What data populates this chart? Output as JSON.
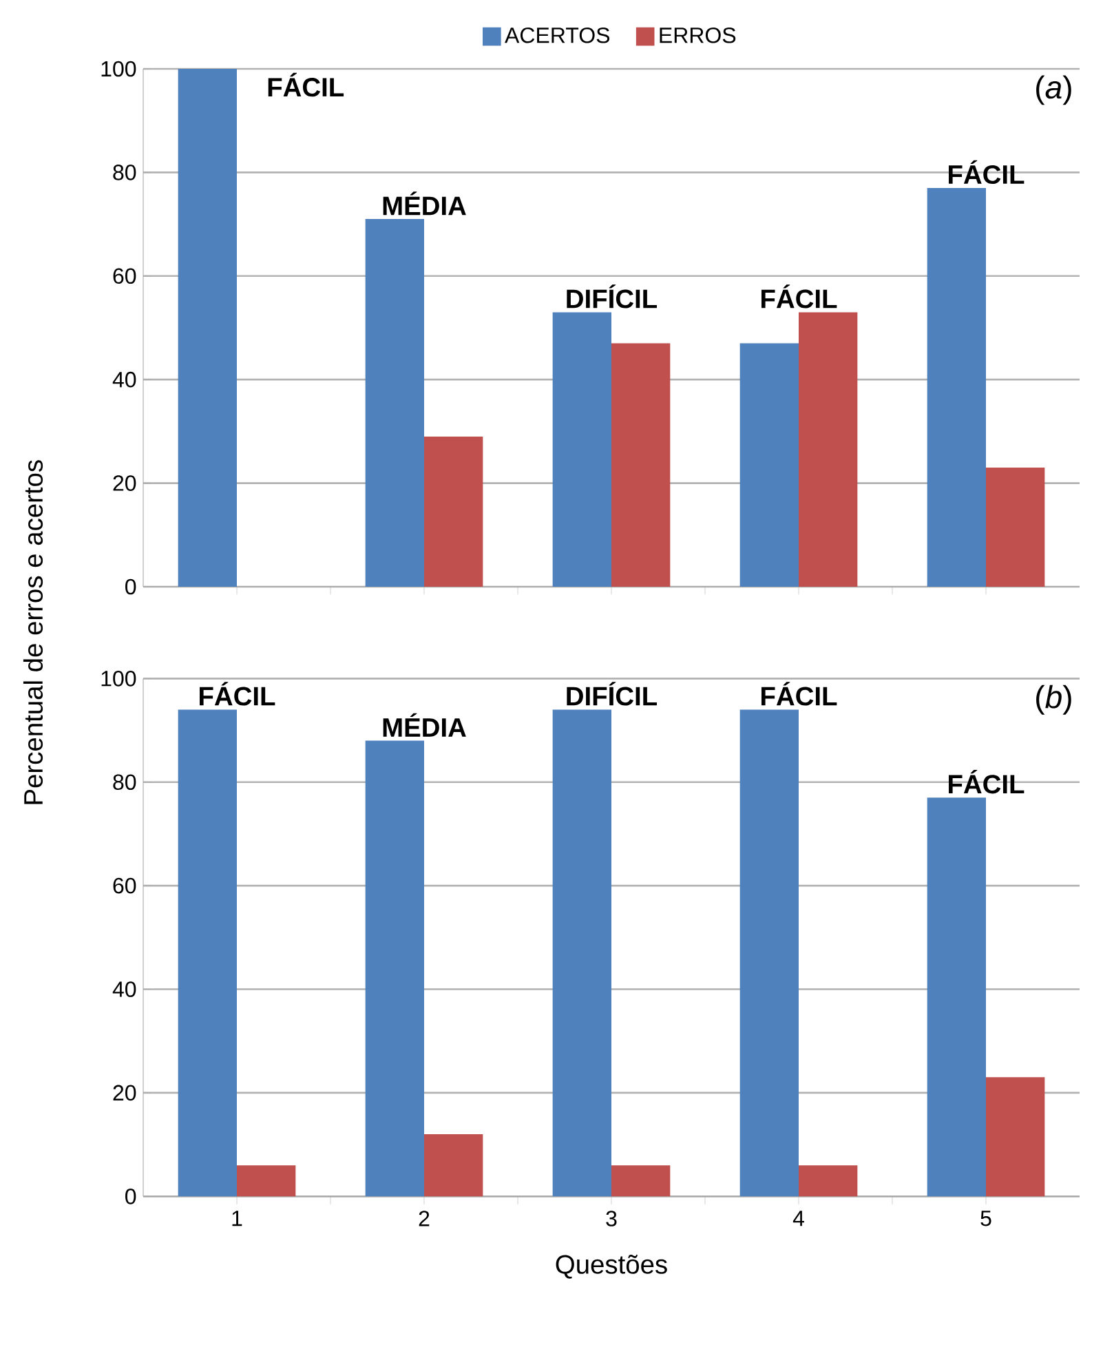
{
  "chart_data": [
    {
      "type": "bar",
      "categories": [
        "1",
        "2",
        "3",
        "4",
        "5"
      ],
      "ylabel": "Percentual de erros e acertos",
      "series": [
        {
          "name": "ACERTOS",
          "color": "#4f81bd",
          "values": [
            100,
            71,
            53,
            47,
            77
          ]
        },
        {
          "name": "ERROS",
          "color": "#c0504d",
          "values": [
            0,
            29,
            47,
            53,
            23
          ]
        }
      ],
      "ylim": [
        0,
        100
      ],
      "yticks": [
        0,
        20,
        40,
        60,
        80,
        100
      ],
      "grid": "y",
      "legend": "top",
      "tick_labels": "y",
      "annotations": [
        {
          "text": "FÁCIL",
          "x": "1",
          "y": 100
        },
        {
          "text": "MÉDIA",
          "x": "2",
          "y": 71
        },
        {
          "text": "DIFÍCIL",
          "x": "3",
          "y": 53
        },
        {
          "text": "FÁCIL",
          "x": "4",
          "y": 53
        },
        {
          "text": "FÁCIL",
          "x": "5",
          "y": 77
        },
        "(*a*)"
      ]
    },
    {
      "type": "bar",
      "categories": [
        "1",
        "2",
        "3",
        "4",
        "5"
      ],
      "xlabel": "Questões",
      "series": [
        {
          "color": "#4f81bd",
          "values": [
            94,
            88,
            94,
            94,
            77
          ]
        },
        {
          "color": "#c0504d",
          "values": [
            6,
            12,
            6,
            6,
            23
          ]
        }
      ],
      "ylim": [
        0,
        100
      ],
      "yticks": [
        0,
        20,
        40,
        60,
        80,
        100
      ],
      "grid": "y",
      "annotations": [
        {
          "text": "FÁCIL",
          "x": "1",
          "y": 94
        },
        {
          "text": "MÉDIA",
          "x": "2",
          "y": 88
        },
        {
          "text": "DIFÍCIL",
          "x": "3",
          "y": 94
        },
        {
          "text": "FÁCIL",
          "x": "4",
          "y": 94
        },
        {
          "text": "FÁCIL",
          "x": "5",
          "y": 77
        },
        "(*b*)"
      ]
    }
  ]
}
